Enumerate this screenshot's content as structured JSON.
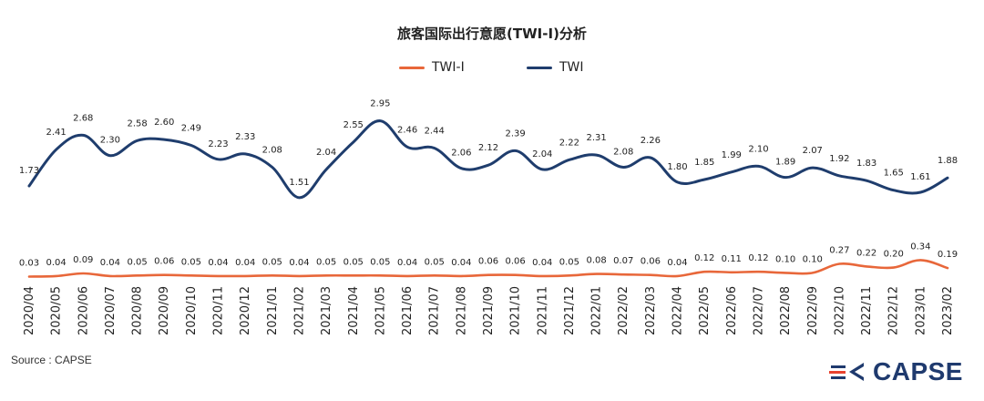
{
  "chart_data": {
    "type": "line",
    "title": "旅客国际出行意愿(TWI-I)分析",
    "categories": [
      "2020/04",
      "2020/05",
      "2020/06",
      "2020/07",
      "2020/08",
      "2020/09",
      "2020/10",
      "2020/11",
      "2020/12",
      "2021/01",
      "2021/02",
      "2021/03",
      "2021/04",
      "2021/05",
      "2021/06",
      "2021/07",
      "2021/08",
      "2021/09",
      "2021/10",
      "2021/11",
      "2021/12",
      "2022/01",
      "2022/02",
      "2022/03",
      "2022/04",
      "2022/05",
      "2022/06",
      "2022/07",
      "2022/08",
      "2022/09",
      "2022/10",
      "2022/11",
      "2022/12",
      "2023/01",
      "2023/02"
    ],
    "series": [
      {
        "name": "TWI-I",
        "color": "#e8673a",
        "values": [
          0.03,
          0.04,
          0.09,
          0.04,
          0.05,
          0.06,
          0.05,
          0.04,
          0.04,
          0.05,
          0.04,
          0.05,
          0.05,
          0.05,
          0.04,
          0.05,
          0.04,
          0.06,
          0.06,
          0.04,
          0.05,
          0.08,
          0.07,
          0.06,
          0.04,
          0.12,
          0.11,
          0.12,
          0.1,
          0.1,
          0.27,
          0.22,
          0.2,
          0.34,
          0.19
        ]
      },
      {
        "name": "TWI",
        "color": "#1f3d6d",
        "values": [
          1.73,
          2.41,
          2.68,
          2.3,
          2.58,
          2.6,
          2.49,
          2.23,
          2.33,
          2.08,
          1.51,
          2.04,
          2.55,
          2.95,
          2.46,
          2.44,
          2.06,
          2.12,
          2.39,
          2.04,
          2.22,
          2.31,
          2.08,
          2.26,
          1.8,
          1.85,
          1.99,
          2.1,
          1.89,
          2.07,
          1.92,
          1.83,
          1.65,
          1.61,
          1.88
        ]
      }
    ],
    "legend_placement": "top-center",
    "grid": false
  },
  "source_label": "Source : CAPSE",
  "logo": {
    "text": "CAPSE",
    "color": "#1f3a6e",
    "accent": "#e8422e"
  }
}
